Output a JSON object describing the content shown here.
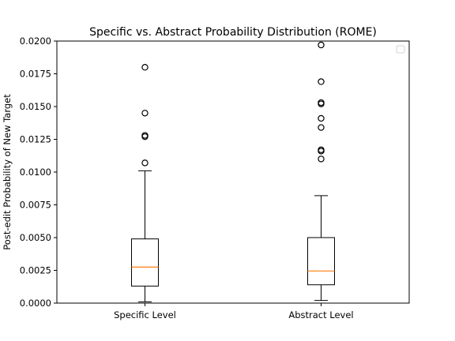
{
  "chart_data": {
    "type": "box",
    "title": "Specific vs. Abstract Probability Distribution (ROME)",
    "xlabel": "",
    "ylabel": "Post-edit Probability of New Target",
    "ylim": [
      0,
      0.02
    ],
    "yticks": [
      "0.0000",
      "0.0025",
      "0.0050",
      "0.0075",
      "0.0100",
      "0.0125",
      "0.0150",
      "0.0175",
      "0.0200"
    ],
    "categories": [
      "Specific Level",
      "Abstract Level"
    ],
    "boxes": [
      {
        "category": "Specific Level",
        "whisker_low": 0.0001,
        "q1": 0.0013,
        "median": 0.00275,
        "q3": 0.0049,
        "whisker_high": 0.0101,
        "outliers": [
          0.0107,
          0.0127,
          0.0128,
          0.0145,
          0.018
        ]
      },
      {
        "category": "Abstract Level",
        "whisker_low": 0.0002,
        "q1": 0.0014,
        "median": 0.00245,
        "q3": 0.005,
        "whisker_high": 0.0082,
        "outliers": [
          0.011,
          0.0116,
          0.0117,
          0.0134,
          0.0141,
          0.0152,
          0.0153,
          0.0169,
          0.0197
        ]
      }
    ],
    "legend": "top-right (empty)",
    "grid": false,
    "colors": {
      "box": "#000000",
      "median": "#ff7f0e",
      "outlier_edge": "#000000"
    }
  }
}
